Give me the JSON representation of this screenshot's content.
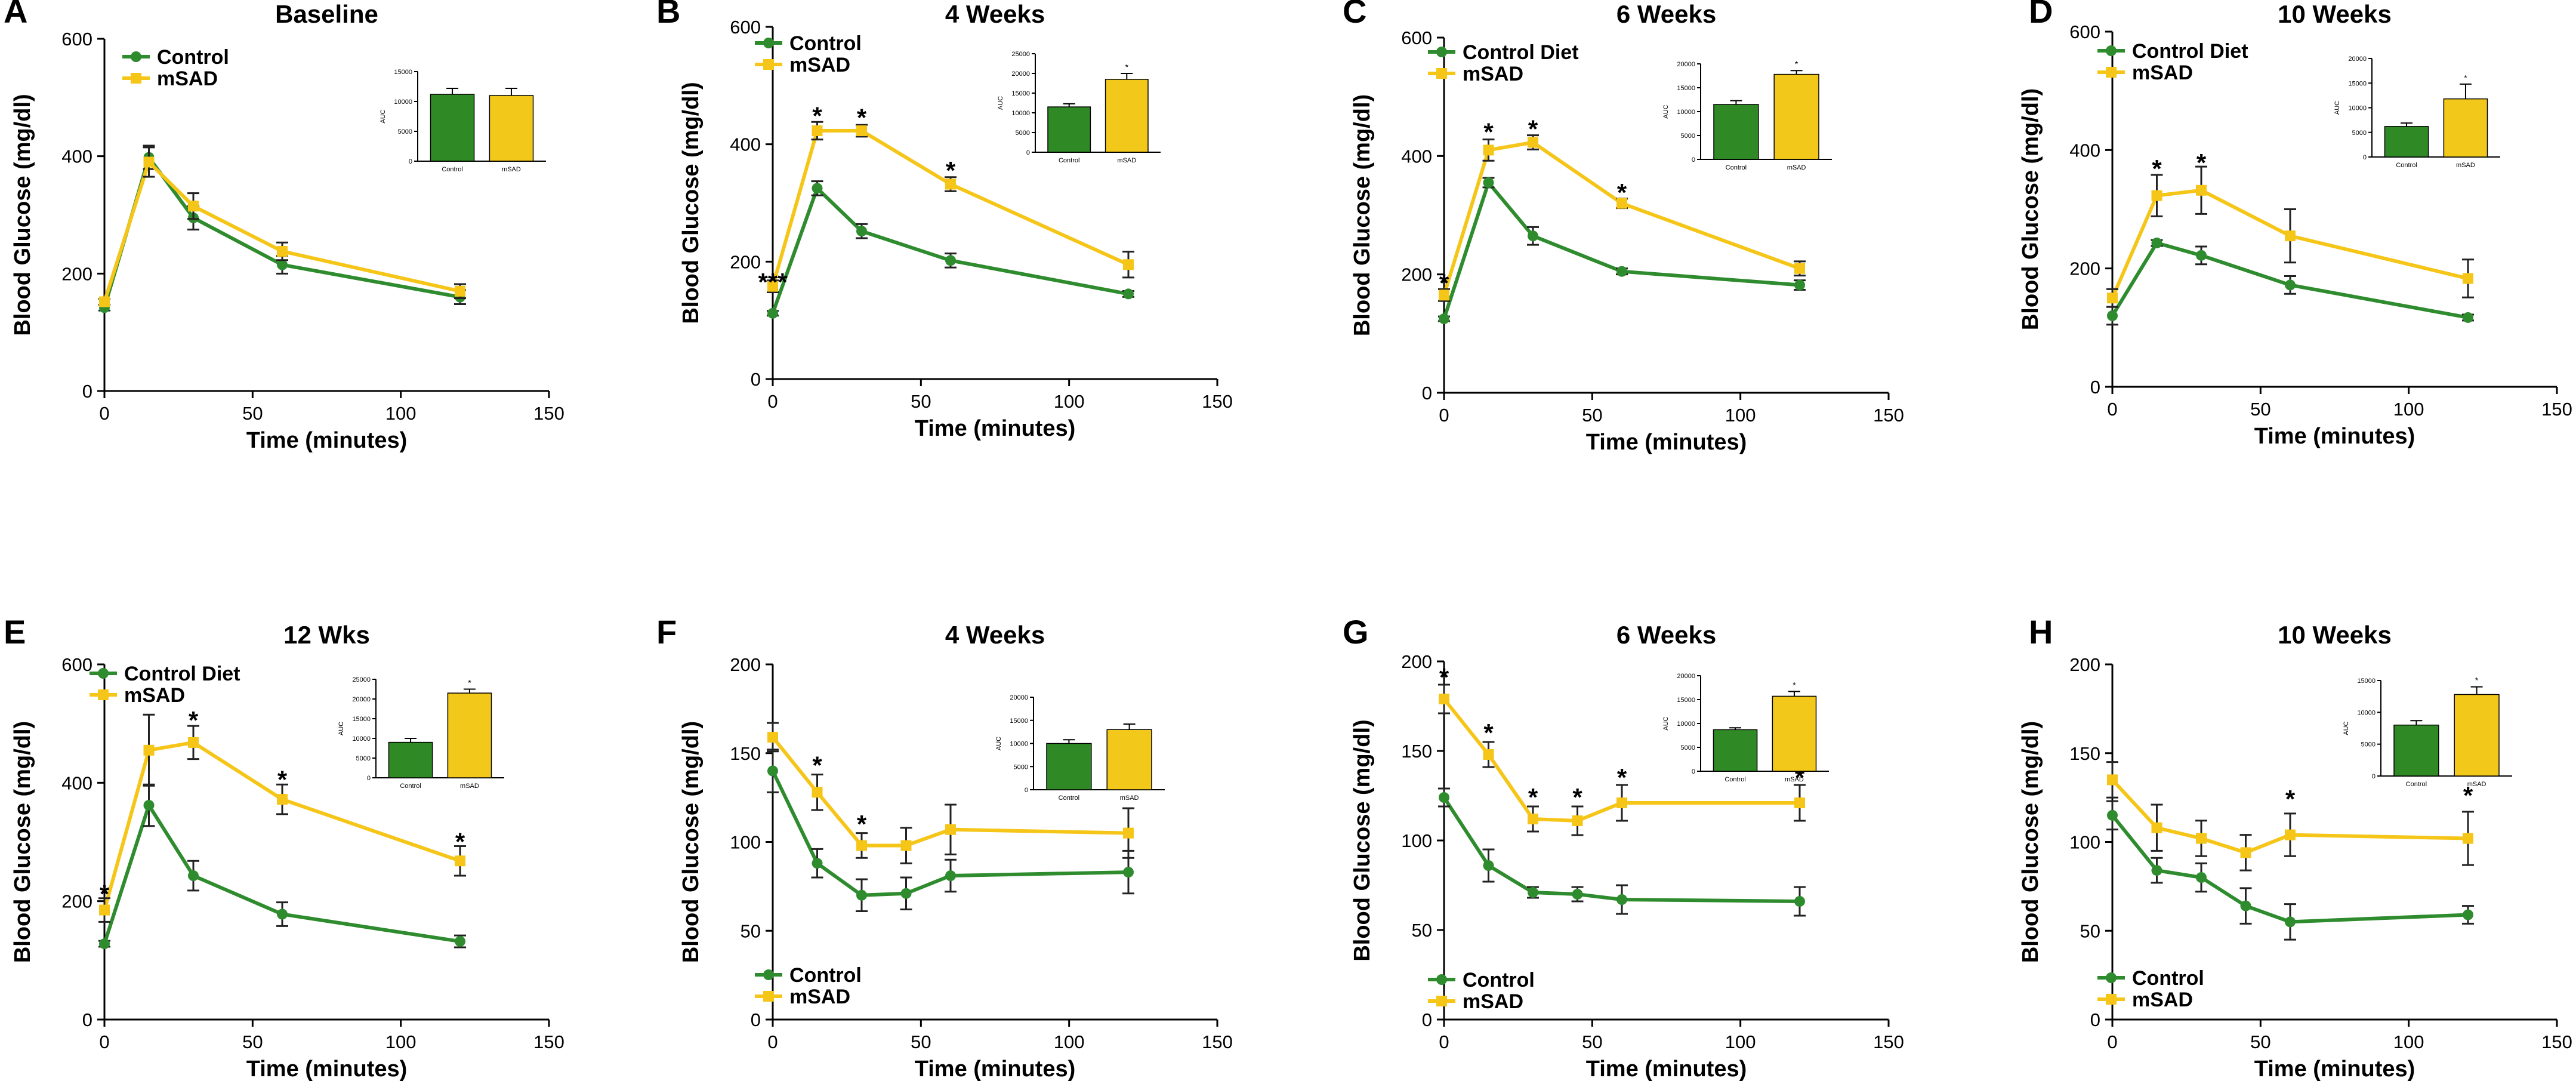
{
  "colors": {
    "control": "#2e8b2e",
    "msad": "#f5c518",
    "inset_control": "#2f8a26",
    "inset_msad": "#f2c81a",
    "axis": "#000000"
  },
  "chart_data": [
    {
      "panel_letter": "A",
      "type": "line",
      "title": "Baseline",
      "xlabel": "Time (minutes)",
      "ylabel": "Blood Glucose (mg/dl)",
      "xlim": [
        0,
        150
      ],
      "xticks": [
        0,
        50,
        100,
        150
      ],
      "ylim": [
        0,
        600
      ],
      "yticks": [
        0,
        200,
        400,
        600
      ],
      "x": [
        0,
        15,
        30,
        60,
        120
      ],
      "legend_pos": "top-left",
      "series": [
        {
          "name": "Control",
          "values": [
            142,
            398,
            295,
            215,
            160
          ],
          "errors": [
            5,
            20,
            20,
            15,
            12
          ]
        },
        {
          "name": "mSAD",
          "values": [
            152,
            390,
            315,
            238,
            170
          ],
          "errors": [
            5,
            25,
            22,
            15,
            12
          ]
        }
      ],
      "stars": [],
      "inset": {
        "ylabel": "AUC",
        "categories": [
          "Control",
          "mSAD"
        ],
        "values": [
          11200,
          11000
        ],
        "errors": [
          1000,
          1200
        ],
        "ymax": 15000,
        "yticks": [
          0,
          5000,
          10000,
          15000
        ],
        "stars": []
      }
    },
    {
      "panel_letter": "B",
      "type": "line",
      "title": "4 Weeks",
      "xlabel": "Time (minutes)",
      "ylabel": "Blood Glucose (mg/dl)",
      "xlim": [
        0,
        150
      ],
      "xticks": [
        0,
        50,
        100,
        150
      ],
      "ylim": [
        0,
        600
      ],
      "yticks": [
        0,
        200,
        400,
        600
      ],
      "x": [
        0,
        15,
        30,
        60,
        120
      ],
      "legend_pos": "top-left",
      "series": [
        {
          "name": "Control",
          "values": [
            112,
            325,
            252,
            202,
            145
          ],
          "errors": [
            4,
            12,
            12,
            12,
            5
          ]
        },
        {
          "name": "mSAD",
          "values": [
            158,
            423,
            423,
            332,
            195
          ],
          "errors": [
            10,
            15,
            10,
            12,
            22
          ]
        }
      ],
      "stars": [
        {
          "text": "***",
          "x": 0,
          "y": 165
        },
        {
          "text": "*",
          "x": 15,
          "y": 448
        },
        {
          "text": "*",
          "x": 30,
          "y": 445
        },
        {
          "text": "*",
          "x": 60,
          "y": 355
        }
      ],
      "inset": {
        "ylabel": "AUC",
        "categories": [
          "Control",
          "mSAD"
        ],
        "values": [
          11500,
          18500
        ],
        "errors": [
          800,
          1500
        ],
        "ymax": 25000,
        "yticks": [
          0,
          5000,
          10000,
          15000,
          20000,
          25000
        ],
        "stars": [
          {
            "text": "*",
            "index": 1
          }
        ]
      }
    },
    {
      "panel_letter": "C",
      "type": "line",
      "title": "6 Weeks",
      "xlabel": "Time (minutes)",
      "ylabel": "Blood Glucose (mg/dl)",
      "xlim": [
        0,
        150
      ],
      "xticks": [
        0,
        50,
        100,
        150
      ],
      "ylim": [
        0,
        600
      ],
      "yticks": [
        0,
        200,
        400,
        600
      ],
      "x": [
        0,
        15,
        30,
        60,
        120
      ],
      "legend_pos": "top-left",
      "series": [
        {
          "name": "Control Diet",
          "values": [
            125,
            355,
            265,
            205,
            182
          ],
          "errors": [
            4,
            8,
            15,
            5,
            8
          ]
        },
        {
          "name": "mSAD",
          "values": [
            165,
            410,
            423,
            320,
            210
          ],
          "errors": [
            10,
            18,
            12,
            8,
            12
          ]
        }
      ],
      "stars": [
        {
          "text": "*",
          "x": 0,
          "y": 185
        },
        {
          "text": "*",
          "x": 15,
          "y": 440
        },
        {
          "text": "*",
          "x": 30,
          "y": 445
        },
        {
          "text": "*",
          "x": 60,
          "y": 338
        }
      ],
      "inset": {
        "ylabel": "AUC",
        "categories": [
          "Control",
          "mSAD"
        ],
        "values": [
          11500,
          17800
        ],
        "errors": [
          800,
          800
        ],
        "ymax": 20000,
        "yticks": [
          0,
          5000,
          10000,
          15000,
          20000
        ],
        "stars": [
          {
            "text": "*",
            "index": 1
          }
        ]
      }
    },
    {
      "panel_letter": "D",
      "type": "line",
      "title": "10 Weeks",
      "xlabel": "Time (minutes)",
      "ylabel": "Blood Glucose (mg/dl)",
      "xlim": [
        0,
        150
      ],
      "xticks": [
        0,
        50,
        100,
        150
      ],
      "ylim": [
        0,
        600
      ],
      "yticks": [
        0,
        200,
        400,
        600
      ],
      "x": [
        0,
        15,
        30,
        60,
        120
      ],
      "legend_pos": "top-left",
      "series": [
        {
          "name": "Control Diet",
          "values": [
            120,
            243,
            222,
            172,
            117
          ],
          "errors": [
            15,
            5,
            15,
            15,
            5
          ]
        },
        {
          "name": "mSAD",
          "values": [
            150,
            323,
            332,
            255,
            183
          ],
          "errors": [
            15,
            35,
            40,
            45,
            32
          ]
        }
      ],
      "stars": [
        {
          "text": "*",
          "x": 15,
          "y": 368
        },
        {
          "text": "*",
          "x": 30,
          "y": 378
        }
      ],
      "inset": {
        "ylabel": "AUC",
        "categories": [
          "Control",
          "mSAD"
        ],
        "values": [
          6200,
          11800
        ],
        "errors": [
          700,
          3000
        ],
        "ymax": 20000,
        "yticks": [
          0,
          5000,
          10000,
          15000,
          20000
        ],
        "stars": [
          {
            "text": "*",
            "index": 1
          }
        ]
      }
    },
    {
      "panel_letter": "E",
      "type": "line",
      "title": "12 Wks",
      "xlabel": "Time (minutes)",
      "ylabel": "Blood Glucose (mg/dl)",
      "xlim": [
        0,
        150
      ],
      "xticks": [
        0,
        50,
        100,
        150
      ],
      "ylim": [
        0,
        600
      ],
      "yticks": [
        0,
        200,
        400,
        600
      ],
      "x": [
        0,
        15,
        30,
        60,
        120
      ],
      "legend_pos": "top-left",
      "series": [
        {
          "name": "Control Diet",
          "values": [
            128,
            362,
            243,
            178,
            132
          ],
          "errors": [
            5,
            35,
            25,
            20,
            10
          ]
        },
        {
          "name": "mSAD",
          "values": [
            185,
            455,
            468,
            372,
            268
          ],
          "errors": [
            20,
            60,
            28,
            25,
            25
          ]
        }
      ],
      "stars": [
        {
          "text": "*",
          "x": 0,
          "y": 212
        },
        {
          "text": "*",
          "x": 30,
          "y": 505
        },
        {
          "text": "*",
          "x": 60,
          "y": 405
        },
        {
          "text": "*",
          "x": 120,
          "y": 300
        }
      ],
      "inset": {
        "ylabel": "AUC",
        "categories": [
          "Control",
          "mSAD"
        ],
        "values": [
          9000,
          21500
        ],
        "errors": [
          1000,
          1000
        ],
        "ymax": 25000,
        "yticks": [
          0,
          5000,
          10000,
          15000,
          20000,
          25000
        ],
        "stars": [
          {
            "text": "*",
            "index": 1
          }
        ]
      }
    },
    {
      "panel_letter": "F",
      "type": "line",
      "title": "4 Weeks",
      "xlabel": "Time (minutes)",
      "ylabel": "Blood Glucose (mg/dl)",
      "xlim": [
        0,
        150
      ],
      "xticks": [
        0,
        50,
        100,
        150
      ],
      "ylim": [
        0,
        200
      ],
      "yticks": [
        0,
        50,
        100,
        150,
        200
      ],
      "x": [
        0,
        15,
        30,
        45,
        60,
        120
      ],
      "legend_pos": "bottom-left",
      "series": [
        {
          "name": "Control",
          "values": [
            140,
            88,
            70,
            71,
            81,
            83
          ],
          "errors": [
            12,
            8,
            9,
            9,
            9,
            12
          ]
        },
        {
          "name": "mSAD",
          "values": [
            159,
            128,
            98,
            98,
            107,
            105
          ],
          "errors": [
            8,
            10,
            7,
            10,
            14,
            14
          ]
        }
      ],
      "stars": [
        {
          "text": "*",
          "x": 15,
          "y": 143
        },
        {
          "text": "*",
          "x": 30,
          "y": 110
        }
      ],
      "inset": {
        "ylabel": "AUC",
        "categories": [
          "Control",
          "mSAD"
        ],
        "values": [
          10000,
          13000
        ],
        "errors": [
          800,
          1200
        ],
        "ymax": 20000,
        "yticks": [
          0,
          5000,
          10000,
          15000,
          20000
        ],
        "stars": []
      }
    },
    {
      "panel_letter": "G",
      "type": "line",
      "title": "6 Weeks",
      "xlabel": "Time (minutes)",
      "ylabel": "Blood Glucose (mg/dl)",
      "xlim": [
        0,
        150
      ],
      "xticks": [
        0,
        50,
        100,
        150
      ],
      "ylim": [
        0,
        200
      ],
      "yticks": [
        0,
        50,
        100,
        150,
        200
      ],
      "x": [
        0,
        15,
        30,
        45,
        60,
        120
      ],
      "legend_pos": "bottom-left",
      "series": [
        {
          "name": "Control",
          "values": [
            124,
            86,
            71,
            70,
            67,
            66
          ],
          "errors": [
            5,
            9,
            3,
            4,
            8,
            8
          ]
        },
        {
          "name": "mSAD",
          "values": [
            179,
            148,
            112,
            111,
            121,
            121
          ],
          "errors": [
            8,
            7,
            7,
            8,
            10,
            10
          ]
        }
      ],
      "stars": [
        {
          "text": "*",
          "x": 0,
          "y": 191
        },
        {
          "text": "*",
          "x": 15,
          "y": 160
        },
        {
          "text": "*",
          "x": 30,
          "y": 124
        },
        {
          "text": "*",
          "x": 45,
          "y": 124
        },
        {
          "text": "*",
          "x": 60,
          "y": 135
        },
        {
          "text": "*",
          "x": 120,
          "y": 135
        }
      ],
      "inset": {
        "ylabel": "AUC",
        "categories": [
          "Control",
          "mSAD"
        ],
        "values": [
          8700,
          15700
        ],
        "errors": [
          400,
          1000
        ],
        "ymax": 20000,
        "yticks": [
          0,
          5000,
          10000,
          15000,
          20000
        ],
        "stars": [
          {
            "text": "*",
            "index": 1
          }
        ]
      }
    },
    {
      "panel_letter": "H",
      "type": "line",
      "title": "10 Weeks",
      "xlabel": "Time (minutes)",
      "ylabel": "Blood Glucose (mg/dl)",
      "xlim": [
        0,
        150
      ],
      "xticks": [
        0,
        50,
        100,
        150
      ],
      "ylim": [
        0,
        200
      ],
      "yticks": [
        0,
        50,
        100,
        150,
        200
      ],
      "x": [
        0,
        15,
        30,
        45,
        60,
        120
      ],
      "legend_pos": "bottom-left",
      "series": [
        {
          "name": "Control",
          "values": [
            115,
            84,
            80,
            64,
            55,
            59
          ],
          "errors": [
            8,
            7,
            8,
            10,
            10,
            5
          ]
        },
        {
          "name": "mSAD",
          "values": [
            135,
            108,
            102,
            94,
            104,
            102
          ],
          "errors": [
            10,
            13,
            10,
            10,
            12,
            15
          ]
        }
      ],
      "stars": [
        {
          "text": "*",
          "x": 60,
          "y": 124
        },
        {
          "text": "*",
          "x": 120,
          "y": 126
        }
      ],
      "inset": {
        "ylabel": "AUC",
        "categories": [
          "Control",
          "mSAD"
        ],
        "values": [
          8000,
          12800
        ],
        "errors": [
          700,
          1200
        ],
        "ymax": 15000,
        "yticks": [
          0,
          5000,
          10000,
          15000
        ],
        "stars": [
          {
            "text": "*",
            "index": 1
          }
        ]
      }
    }
  ]
}
